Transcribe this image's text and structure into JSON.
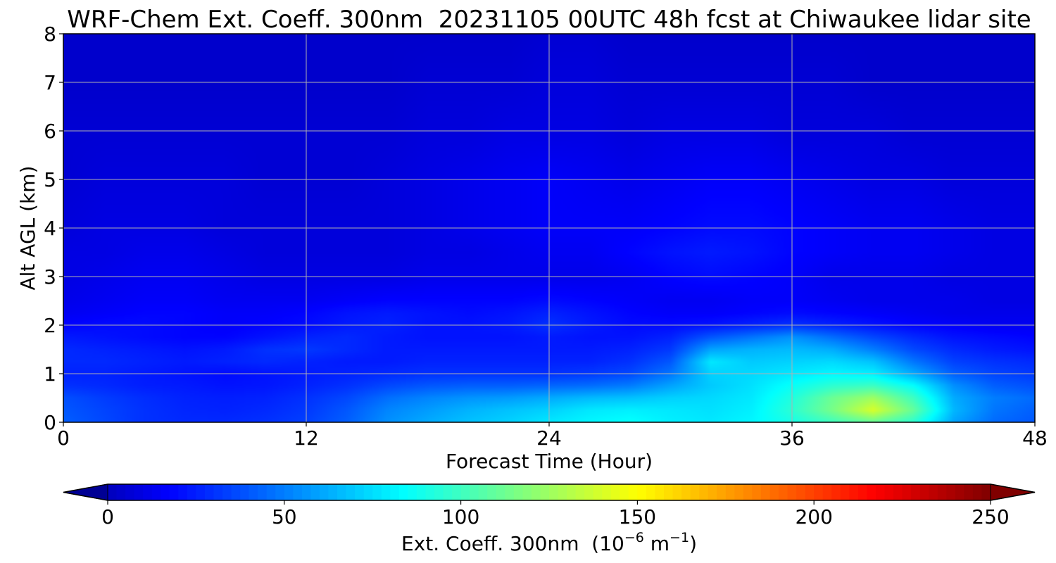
{
  "chart_data": {
    "type": "heatmap",
    "title": "WRF-Chem Ext. Coeff. 300nm  20231105 00UTC 48h fcst at Chiwaukee lidar site",
    "xlabel": "Forecast Time (Hour)",
    "ylabel": "Alt AGL (km)",
    "xlim": [
      0,
      48
    ],
    "ylim": [
      0,
      8
    ],
    "xticks": [
      0,
      12,
      24,
      36,
      48
    ],
    "yticks": [
      0,
      1,
      2,
      3,
      4,
      5,
      6,
      7,
      8
    ],
    "grid": true,
    "x_hours": [
      0,
      2,
      4,
      6,
      8,
      10,
      12,
      14,
      16,
      18,
      20,
      22,
      24,
      26,
      28,
      30,
      32,
      34,
      36,
      38,
      40,
      42,
      44,
      46,
      48
    ],
    "z_levels_km": [
      0.0,
      0.25,
      0.5,
      0.75,
      1.0,
      1.25,
      1.5,
      1.75,
      2.0,
      2.25,
      2.5,
      3.0,
      3.5,
      4.0,
      5.0,
      6.0,
      7.0,
      8.0
    ],
    "values": [
      [
        42,
        36,
        30,
        28,
        28,
        30,
        34,
        42,
        55,
        62,
        68,
        72,
        78,
        82,
        85,
        80,
        78,
        82,
        90,
        100,
        110,
        95,
        60,
        45,
        40
      ],
      [
        40,
        35,
        30,
        27,
        26,
        28,
        32,
        40,
        52,
        58,
        64,
        68,
        72,
        78,
        80,
        78,
        76,
        80,
        95,
        115,
        140,
        110,
        65,
        48,
        42
      ],
      [
        38,
        33,
        29,
        26,
        25,
        26,
        30,
        36,
        46,
        52,
        56,
        58,
        62,
        66,
        68,
        72,
        74,
        78,
        92,
        112,
        125,
        100,
        62,
        50,
        45
      ],
      [
        30,
        28,
        25,
        24,
        22,
        23,
        26,
        30,
        36,
        40,
        42,
        42,
        44,
        46,
        50,
        60,
        70,
        76,
        86,
        96,
        100,
        85,
        55,
        42,
        38
      ],
      [
        26,
        26,
        24,
        22,
        20,
        22,
        24,
        26,
        28,
        30,
        30,
        30,
        30,
        32,
        36,
        48,
        72,
        74,
        78,
        82,
        80,
        62,
        42,
        35,
        32
      ],
      [
        28,
        28,
        26,
        24,
        26,
        28,
        26,
        24,
        24,
        26,
        26,
        26,
        26,
        26,
        30,
        40,
        78,
        70,
        72,
        74,
        68,
        48,
        34,
        30,
        28
      ],
      [
        28,
        26,
        24,
        22,
        24,
        30,
        32,
        28,
        24,
        24,
        24,
        24,
        24,
        24,
        26,
        32,
        60,
        64,
        66,
        62,
        50,
        36,
        28,
        24,
        22
      ],
      [
        24,
        22,
        20,
        18,
        18,
        22,
        26,
        28,
        24,
        22,
        22,
        22,
        24,
        22,
        22,
        26,
        40,
        48,
        56,
        46,
        36,
        28,
        22,
        20,
        18
      ],
      [
        18,
        20,
        20,
        18,
        16,
        18,
        20,
        24,
        26,
        22,
        22,
        24,
        30,
        24,
        20,
        20,
        22,
        26,
        30,
        26,
        22,
        18,
        16,
        14,
        14
      ],
      [
        14,
        16,
        18,
        18,
        16,
        16,
        18,
        22,
        24,
        22,
        20,
        22,
        26,
        22,
        18,
        16,
        16,
        18,
        20,
        18,
        16,
        14,
        12,
        12,
        12
      ],
      [
        12,
        14,
        16,
        16,
        14,
        14,
        14,
        16,
        18,
        18,
        18,
        18,
        20,
        18,
        16,
        14,
        14,
        16,
        16,
        14,
        12,
        12,
        12,
        10,
        10
      ],
      [
        10,
        12,
        14,
        14,
        12,
        10,
        10,
        10,
        10,
        12,
        12,
        12,
        12,
        12,
        14,
        18,
        20,
        18,
        16,
        12,
        12,
        12,
        10,
        10,
        10
      ],
      [
        10,
        10,
        12,
        12,
        10,
        8,
        8,
        8,
        8,
        10,
        10,
        12,
        14,
        14,
        18,
        22,
        24,
        22,
        18,
        16,
        14,
        14,
        12,
        10,
        10
      ],
      [
        8,
        10,
        10,
        10,
        8,
        8,
        8,
        8,
        8,
        10,
        12,
        14,
        16,
        16,
        16,
        18,
        20,
        20,
        18,
        16,
        14,
        14,
        12,
        10,
        10
      ],
      [
        6,
        8,
        8,
        8,
        8,
        6,
        6,
        6,
        8,
        10,
        12,
        14,
        16,
        14,
        12,
        14,
        16,
        16,
        14,
        12,
        10,
        10,
        8,
        8,
        8
      ],
      [
        6,
        6,
        6,
        6,
        6,
        6,
        6,
        6,
        6,
        8,
        8,
        10,
        10,
        10,
        8,
        10,
        10,
        10,
        8,
        8,
        8,
        6,
        6,
        6,
        6
      ],
      [
        4,
        4,
        4,
        4,
        4,
        4,
        4,
        4,
        4,
        6,
        6,
        6,
        8,
        8,
        6,
        6,
        6,
        6,
        6,
        6,
        4,
        4,
        4,
        4,
        4
      ],
      [
        4,
        4,
        4,
        4,
        4,
        4,
        4,
        4,
        4,
        4,
        4,
        4,
        6,
        6,
        4,
        4,
        4,
        4,
        4,
        4,
        4,
        4,
        4,
        4,
        4
      ]
    ],
    "colorbar": {
      "min": 0,
      "max": 250,
      "ticks": [
        0,
        50,
        100,
        150,
        200,
        250
      ],
      "label_main": "Ext. Coeff. 300nm  (10",
      "label_exp1": "−6",
      "label_mid": " m",
      "label_exp2": "−1",
      "label_end": ")",
      "colormap": "jet",
      "extend": "both"
    }
  }
}
